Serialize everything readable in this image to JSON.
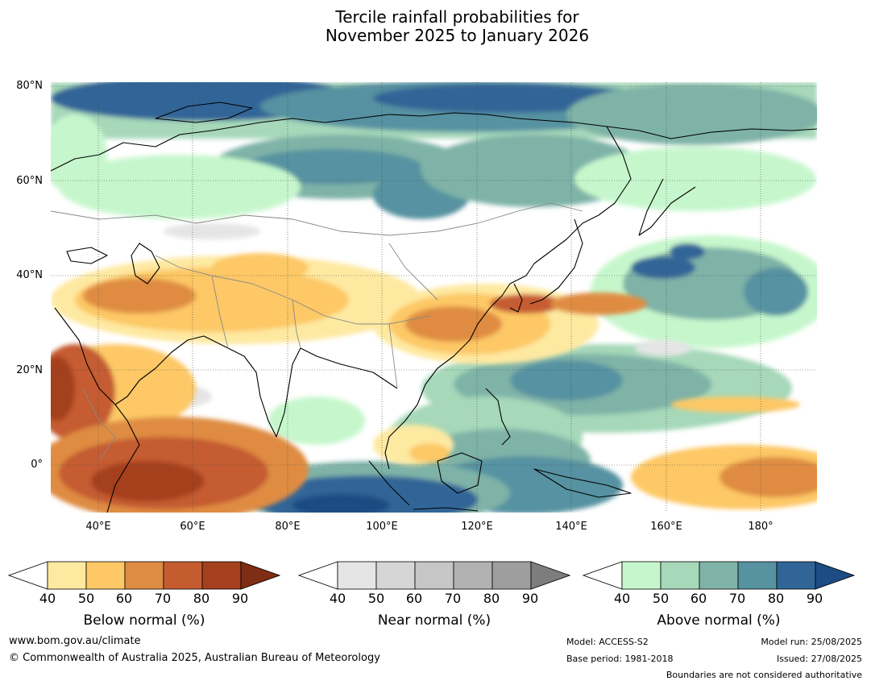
{
  "title_line1": "Tercile rainfall probabilities for",
  "title_line2": "November 2025 to January 2026",
  "map": {
    "lat_labels": [
      "80°N",
      "60°N",
      "40°N",
      "20°N",
      "0°"
    ],
    "lon_labels": [
      "40°E",
      "60°E",
      "80°E",
      "100°E",
      "120°E",
      "140°E",
      "160°E",
      "180°"
    ]
  },
  "legends": [
    {
      "title": "Below normal (%)",
      "ticks": [
        "40",
        "50",
        "60",
        "70",
        "80",
        "90"
      ],
      "colors": [
        "#ffffff",
        "#fee9a1",
        "#fdc865",
        "#df8c43",
        "#c55c30",
        "#a5401f",
        "#7f2d14"
      ]
    },
    {
      "title": "Near normal (%)",
      "ticks": [
        "40",
        "50",
        "60",
        "70",
        "80",
        "90"
      ],
      "colors": [
        "#ffffff",
        "#e5e5e5",
        "#d6d6d6",
        "#c6c6c6",
        "#b2b2b2",
        "#9e9e9e",
        "#7d7d7d"
      ]
    },
    {
      "title": "Above normal (%)",
      "ticks": [
        "40",
        "50",
        "60",
        "70",
        "80",
        "90"
      ],
      "colors": [
        "#ffffff",
        "#c6f7cc",
        "#a6d8b9",
        "#7fb3a7",
        "#5792a1",
        "#316597",
        "#1c4c83"
      ]
    }
  ],
  "footer": {
    "website": "www.bom.gov.au/climate",
    "copyright": "© Commonwealth of Australia 2025, Australian Bureau of Meteorology",
    "model": "Model: ACCESS-S2",
    "base_period": "Base period: 1981-2018",
    "model_run": "Model run: 25/08/2025",
    "issued": "Issued: 27/08/2025",
    "disclaimer": "Boundaries are not considered authoritative"
  }
}
